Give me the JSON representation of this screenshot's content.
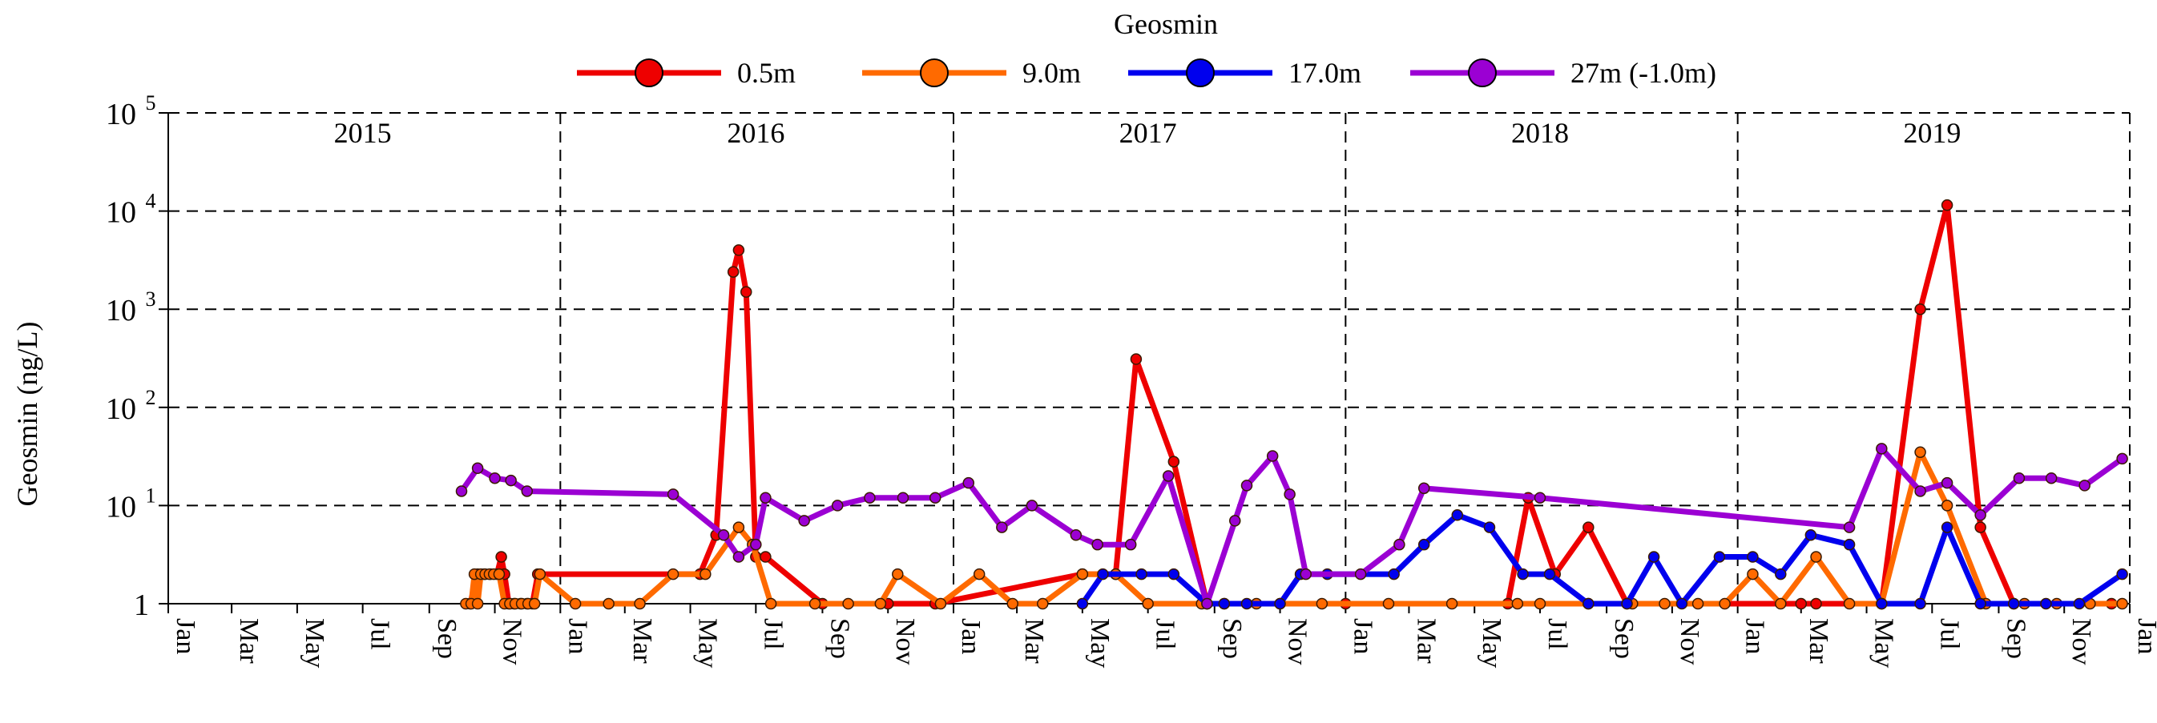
{
  "chart_data": {
    "type": "line",
    "title": "Geosmin",
    "ylabel": "Geosmin (ng/L)",
    "xlabel": "",
    "yscale": "log",
    "ylim": [
      1,
      100000
    ],
    "y_ticks": [
      {
        "value": 1,
        "base": "1",
        "exp": ""
      },
      {
        "value": 10,
        "base": "10",
        "exp": "1"
      },
      {
        "value": 100,
        "base": "10",
        "exp": "2"
      },
      {
        "value": 1000,
        "base": "10",
        "exp": "3"
      },
      {
        "value": 10000,
        "base": "10",
        "exp": "4"
      },
      {
        "value": 100000,
        "base": "10",
        "exp": "5"
      }
    ],
    "xlim": [
      "2015-01-01",
      "2020-01-01"
    ],
    "x_ticks": [
      {
        "date": "2015-01-01",
        "label": "Jan"
      },
      {
        "date": "2015-03-01",
        "label": "Mar"
      },
      {
        "date": "2015-05-01",
        "label": "May"
      },
      {
        "date": "2015-07-01",
        "label": "Jul"
      },
      {
        "date": "2015-09-01",
        "label": "Sep"
      },
      {
        "date": "2015-11-01",
        "label": "Nov"
      },
      {
        "date": "2016-01-01",
        "label": "Jan"
      },
      {
        "date": "2016-03-01",
        "label": "Mar"
      },
      {
        "date": "2016-05-01",
        "label": "May"
      },
      {
        "date": "2016-07-01",
        "label": "Jul"
      },
      {
        "date": "2016-09-01",
        "label": "Sep"
      },
      {
        "date": "2016-11-01",
        "label": "Nov"
      },
      {
        "date": "2017-01-01",
        "label": "Jan"
      },
      {
        "date": "2017-03-01",
        "label": "Mar"
      },
      {
        "date": "2017-05-01",
        "label": "May"
      },
      {
        "date": "2017-07-01",
        "label": "Jul"
      },
      {
        "date": "2017-09-01",
        "label": "Sep"
      },
      {
        "date": "2017-11-01",
        "label": "Nov"
      },
      {
        "date": "2018-01-01",
        "label": "Jan"
      },
      {
        "date": "2018-03-01",
        "label": "Mar"
      },
      {
        "date": "2018-05-01",
        "label": "May"
      },
      {
        "date": "2018-07-01",
        "label": "Jul"
      },
      {
        "date": "2018-09-01",
        "label": "Sep"
      },
      {
        "date": "2018-11-01",
        "label": "Nov"
      },
      {
        "date": "2019-01-01",
        "label": "Jan"
      },
      {
        "date": "2019-03-01",
        "label": "Mar"
      },
      {
        "date": "2019-05-01",
        "label": "May"
      },
      {
        "date": "2019-07-01",
        "label": "Jul"
      },
      {
        "date": "2019-09-01",
        "label": "Sep"
      },
      {
        "date": "2019-11-01",
        "label": "Nov"
      },
      {
        "date": "2020-01-01",
        "label": "Jan"
      }
    ],
    "year_dividers": [
      "2016-01-01",
      "2017-01-01",
      "2018-01-01",
      "2019-01-01"
    ],
    "year_labels": [
      {
        "label": "2015",
        "date": "2015-07-01"
      },
      {
        "label": "2016",
        "date": "2016-07-01"
      },
      {
        "label": "2017",
        "date": "2017-07-01"
      },
      {
        "label": "2018",
        "date": "2018-07-01"
      },
      {
        "label": "2019",
        "date": "2019-07-01"
      }
    ],
    "grid": "dashed horizontal at decades",
    "legend_position": "top-center",
    "series": [
      {
        "name": "0.5m",
        "color": "#ee0000",
        "points": [
          [
            "2015-10-09",
            1
          ],
          [
            "2015-10-16",
            2
          ],
          [
            "2015-10-22",
            2
          ],
          [
            "2015-10-28",
            2
          ],
          [
            "2015-11-03",
            2
          ],
          [
            "2015-11-07",
            3
          ],
          [
            "2015-11-10",
            2
          ],
          [
            "2015-11-14",
            1
          ],
          [
            "2015-11-19",
            1
          ],
          [
            "2015-11-25",
            1
          ],
          [
            "2015-12-01",
            1
          ],
          [
            "2015-12-06",
            1
          ],
          [
            "2015-12-11",
            2
          ],
          [
            "2016-05-10",
            2
          ],
          [
            "2016-05-25",
            5
          ],
          [
            "2016-06-10",
            2400
          ],
          [
            "2016-06-15",
            4000
          ],
          [
            "2016-06-22",
            1500
          ],
          [
            "2016-07-01",
            3
          ],
          [
            "2016-07-10",
            3
          ],
          [
            "2016-09-01",
            1
          ],
          [
            "2016-11-01",
            1
          ],
          [
            "2016-12-15",
            1
          ],
          [
            "2017-05-01",
            2
          ],
          [
            "2017-06-01",
            2
          ],
          [
            "2017-06-20",
            310
          ],
          [
            "2017-07-25",
            28
          ],
          [
            "2017-08-25",
            1
          ],
          [
            "2017-09-10",
            1
          ],
          [
            "2017-11-01",
            1
          ],
          [
            "2018-01-01",
            1
          ],
          [
            "2018-06-01",
            1
          ],
          [
            "2018-06-20",
            12
          ],
          [
            "2018-07-15",
            2
          ],
          [
            "2018-08-15",
            6
          ],
          [
            "2018-09-20",
            1
          ],
          [
            "2019-03-01",
            1
          ],
          [
            "2019-03-15",
            1
          ],
          [
            "2019-05-15",
            1
          ],
          [
            "2019-06-20",
            1000
          ],
          [
            "2019-07-15",
            11500
          ],
          [
            "2019-08-15",
            6
          ],
          [
            "2019-09-15",
            1
          ],
          [
            "2019-12-15",
            1
          ]
        ]
      },
      {
        "name": "9.0m",
        "color": "#ff6a00",
        "points": [
          [
            "2015-10-05",
            1
          ],
          [
            "2015-10-10",
            1
          ],
          [
            "2015-10-13",
            2
          ],
          [
            "2015-10-16",
            1
          ],
          [
            "2015-10-19",
            2
          ],
          [
            "2015-10-23",
            2
          ],
          [
            "2015-10-27",
            2
          ],
          [
            "2015-10-31",
            2
          ],
          [
            "2015-11-05",
            2
          ],
          [
            "2015-11-10",
            1
          ],
          [
            "2015-11-15",
            1
          ],
          [
            "2015-11-20",
            1
          ],
          [
            "2015-11-26",
            1
          ],
          [
            "2015-12-02",
            1
          ],
          [
            "2015-12-08",
            1
          ],
          [
            "2015-12-13",
            2
          ],
          [
            "2016-01-15",
            1
          ],
          [
            "2016-02-15",
            1
          ],
          [
            "2016-03-15",
            1
          ],
          [
            "2016-04-15",
            2
          ],
          [
            "2016-05-15",
            2
          ],
          [
            "2016-06-15",
            6
          ],
          [
            "2016-06-28",
            4
          ],
          [
            "2016-07-15",
            1
          ],
          [
            "2016-08-25",
            1
          ],
          [
            "2016-09-25",
            1
          ],
          [
            "2016-10-25",
            1
          ],
          [
            "2016-11-10",
            2
          ],
          [
            "2016-12-20",
            1
          ],
          [
            "2017-01-25",
            2
          ],
          [
            "2017-02-25",
            1
          ],
          [
            "2017-03-25",
            1
          ],
          [
            "2017-05-01",
            2
          ],
          [
            "2017-06-01",
            2
          ],
          [
            "2017-07-01",
            1
          ],
          [
            "2017-08-20",
            1
          ],
          [
            "2017-10-10",
            1
          ],
          [
            "2017-12-10",
            1
          ],
          [
            "2018-02-10",
            1
          ],
          [
            "2018-04-10",
            1
          ],
          [
            "2018-06-10",
            1
          ],
          [
            "2018-07-01",
            1
          ],
          [
            "2018-08-15",
            1
          ],
          [
            "2018-09-25",
            1
          ],
          [
            "2018-10-25",
            1
          ],
          [
            "2018-11-25",
            1
          ],
          [
            "2018-12-20",
            1
          ],
          [
            "2019-01-15",
            2
          ],
          [
            "2019-02-10",
            1
          ],
          [
            "2019-03-15",
            3
          ],
          [
            "2019-04-15",
            1
          ],
          [
            "2019-05-15",
            1
          ],
          [
            "2019-06-20",
            35
          ],
          [
            "2019-07-15",
            10
          ],
          [
            "2019-08-20",
            1
          ],
          [
            "2019-09-25",
            1
          ],
          [
            "2019-10-25",
            1
          ],
          [
            "2019-11-25",
            1
          ],
          [
            "2019-12-25",
            1
          ]
        ]
      },
      {
        "name": "17.0m",
        "color": "#0000ee",
        "points": [
          [
            "2017-05-01",
            1
          ],
          [
            "2017-05-20",
            2
          ],
          [
            "2017-06-25",
            2
          ],
          [
            "2017-07-25",
            2
          ],
          [
            "2017-08-25",
            1
          ],
          [
            "2017-09-10",
            1
          ],
          [
            "2017-10-01",
            1
          ],
          [
            "2017-11-01",
            1
          ],
          [
            "2017-11-20",
            2
          ],
          [
            "2017-12-15",
            2
          ],
          [
            "2018-02-15",
            2
          ],
          [
            "2018-03-15",
            4
          ],
          [
            "2018-04-15",
            8
          ],
          [
            "2018-05-15",
            6
          ],
          [
            "2018-06-15",
            2
          ],
          [
            "2018-07-10",
            2
          ],
          [
            "2018-08-15",
            1
          ],
          [
            "2018-09-20",
            1
          ],
          [
            "2018-10-15",
            3
          ],
          [
            "2018-11-10",
            1
          ],
          [
            "2018-12-15",
            3
          ],
          [
            "2019-01-15",
            3
          ],
          [
            "2019-02-10",
            2
          ],
          [
            "2019-03-10",
            5
          ],
          [
            "2019-04-15",
            4
          ],
          [
            "2019-05-15",
            1
          ],
          [
            "2019-06-20",
            1
          ],
          [
            "2019-07-15",
            6
          ],
          [
            "2019-08-15",
            1
          ],
          [
            "2019-09-15",
            1
          ],
          [
            "2019-10-15",
            1
          ],
          [
            "2019-11-15",
            1
          ],
          [
            "2019-12-25",
            2
          ]
        ]
      },
      {
        "name": "27m (-1.0m)",
        "color": "#9b00d3",
        "points": [
          [
            "2015-10-01",
            14
          ],
          [
            "2015-10-16",
            24
          ],
          [
            "2015-11-01",
            19
          ],
          [
            "2015-11-16",
            18
          ],
          [
            "2015-12-01",
            14
          ],
          [
            "2016-04-15",
            13
          ],
          [
            "2016-06-01",
            5
          ],
          [
            "2016-06-15",
            3
          ],
          [
            "2016-07-01",
            4
          ],
          [
            "2016-07-10",
            12
          ],
          [
            "2016-08-15",
            7
          ],
          [
            "2016-09-15",
            10
          ],
          [
            "2016-10-15",
            12
          ],
          [
            "2016-11-15",
            12
          ],
          [
            "2016-12-15",
            12
          ],
          [
            "2017-01-15",
            17
          ],
          [
            "2017-02-15",
            6
          ],
          [
            "2017-03-15",
            10
          ],
          [
            "2017-04-25",
            5
          ],
          [
            "2017-05-15",
            4
          ],
          [
            "2017-06-15",
            4
          ],
          [
            "2017-07-20",
            20
          ],
          [
            "2017-08-25",
            1
          ],
          [
            "2017-09-20",
            7
          ],
          [
            "2017-10-01",
            16
          ],
          [
            "2017-10-25",
            32
          ],
          [
            "2017-11-10",
            13
          ],
          [
            "2017-11-25",
            2
          ],
          [
            "2018-01-15",
            2
          ],
          [
            "2018-02-20",
            4
          ],
          [
            "2018-03-15",
            15
          ],
          [
            "2018-07-01",
            12
          ],
          [
            "2019-04-15",
            6
          ],
          [
            "2019-05-15",
            38
          ],
          [
            "2019-06-20",
            14
          ],
          [
            "2019-07-15",
            17
          ],
          [
            "2019-08-15",
            8
          ],
          [
            "2019-09-20",
            19
          ],
          [
            "2019-10-20",
            19
          ],
          [
            "2019-11-20",
            16
          ],
          [
            "2019-12-25",
            30
          ]
        ]
      }
    ]
  }
}
